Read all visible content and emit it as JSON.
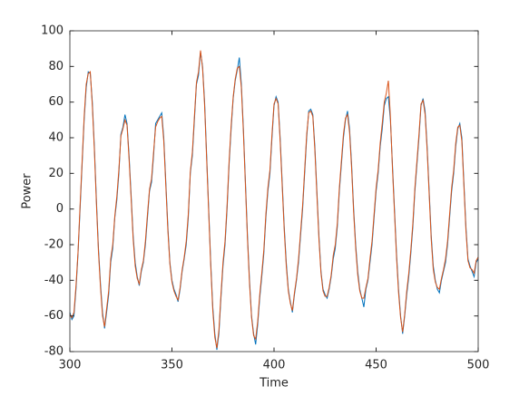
{
  "chart_data": {
    "type": "line",
    "xlabel": "Time",
    "ylabel": "Power",
    "xlim": [
      300,
      500
    ],
    "ylim": [
      -80,
      100
    ],
    "xticks": [
      300,
      350,
      400,
      450,
      500
    ],
    "yticks": [
      -80,
      -60,
      -40,
      -20,
      0,
      20,
      40,
      60,
      80,
      100
    ],
    "x": [
      300,
      301,
      302,
      303,
      304,
      305,
      306,
      307,
      308,
      309,
      310,
      311,
      312,
      313,
      314,
      315,
      316,
      317,
      318,
      319,
      320,
      321,
      322,
      323,
      324,
      325,
      326,
      327,
      328,
      329,
      330,
      331,
      332,
      333,
      334,
      335,
      336,
      337,
      338,
      339,
      340,
      341,
      342,
      343,
      344,
      345,
      346,
      347,
      348,
      349,
      350,
      351,
      352,
      353,
      354,
      355,
      356,
      357,
      358,
      359,
      360,
      361,
      362,
      363,
      364,
      365,
      366,
      367,
      368,
      369,
      370,
      371,
      372,
      373,
      374,
      375,
      376,
      377,
      378,
      379,
      380,
      381,
      382,
      383,
      384,
      385,
      386,
      387,
      388,
      389,
      390,
      391,
      392,
      393,
      394,
      395,
      396,
      397,
      398,
      399,
      400,
      401,
      402,
      403,
      404,
      405,
      406,
      407,
      408,
      409,
      410,
      411,
      412,
      413,
      414,
      415,
      416,
      417,
      418,
      419,
      420,
      421,
      422,
      423,
      424,
      425,
      426,
      427,
      428,
      429,
      430,
      431,
      432,
      433,
      434,
      435,
      436,
      437,
      438,
      439,
      440,
      441,
      442,
      443,
      444,
      445,
      446,
      447,
      448,
      449,
      450,
      451,
      452,
      453,
      454,
      455,
      456,
      457,
      458,
      459,
      460,
      461,
      462,
      463,
      464,
      465,
      466,
      467,
      468,
      469,
      470,
      471,
      472,
      473,
      474,
      475,
      476,
      477,
      478,
      479,
      480,
      481,
      482,
      483,
      484,
      485,
      486,
      487,
      488,
      489,
      490,
      491,
      492,
      493,
      494,
      495,
      496,
      497,
      498,
      499,
      500
    ],
    "series": [
      {
        "color": "#0072bd",
        "values": [
          -58,
          -62,
          -60,
          -45,
          -25,
          0,
          25,
          50,
          68,
          77,
          76,
          60,
          35,
          5,
          -22,
          -42,
          -58,
          -67,
          -58,
          -48,
          -30,
          -22,
          -5,
          5,
          20,
          42,
          46,
          53,
          48,
          30,
          8,
          -15,
          -30,
          -38,
          -43,
          -35,
          -30,
          -20,
          -5,
          10,
          15,
          30,
          48,
          50,
          52,
          54,
          40,
          15,
          -10,
          -30,
          -40,
          -45,
          -48,
          -52,
          -45,
          -35,
          -28,
          -20,
          -5,
          20,
          30,
          50,
          70,
          75,
          88,
          80,
          60,
          30,
          0,
          -30,
          -55,
          -70,
          -79,
          -70,
          -50,
          -32,
          -20,
          0,
          25,
          45,
          62,
          72,
          78,
          85,
          70,
          45,
          15,
          -15,
          -40,
          -60,
          -70,
          -76,
          -65,
          -50,
          -38,
          -25,
          -5,
          10,
          20,
          40,
          58,
          63,
          60,
          40,
          15,
          -10,
          -30,
          -45,
          -52,
          -58,
          -48,
          -40,
          -30,
          -15,
          0,
          20,
          40,
          55,
          56,
          53,
          35,
          10,
          -15,
          -35,
          -45,
          -48,
          -50,
          -45,
          -38,
          -28,
          -22,
          -10,
          10,
          25,
          40,
          50,
          55,
          45,
          25,
          0,
          -20,
          -35,
          -45,
          -50,
          -55,
          -45,
          -40,
          -30,
          -20,
          -5,
          10,
          20,
          35,
          45,
          58,
          62,
          63,
          50,
          25,
          0,
          -25,
          -45,
          -60,
          -70,
          -60,
          -48,
          -38,
          -25,
          -10,
          10,
          25,
          40,
          58,
          62,
          55,
          35,
          10,
          -15,
          -32,
          -40,
          -45,
          -47,
          -40,
          -35,
          -30,
          -20,
          -5,
          10,
          20,
          35,
          45,
          48,
          40,
          15,
          -10,
          -28,
          -32,
          -35,
          -38,
          -30,
          -28
        ]
      },
      {
        "color": "#d95319",
        "values": [
          -59,
          -61,
          -58,
          -43,
          -24,
          2,
          27,
          52,
          70,
          76,
          77,
          58,
          33,
          3,
          -24,
          -44,
          -60,
          -66,
          -56,
          -46,
          -28,
          -20,
          -4,
          7,
          22,
          41,
          45,
          50,
          47,
          28,
          6,
          -17,
          -32,
          -39,
          -42,
          -34,
          -29,
          -18,
          -3,
          11,
          17,
          32,
          46,
          49,
          51,
          52,
          38,
          13,
          -12,
          -31,
          -41,
          -46,
          -49,
          -51,
          -44,
          -34,
          -27,
          -18,
          -3,
          21,
          32,
          52,
          71,
          77,
          89,
          79,
          58,
          28,
          -2,
          -32,
          -57,
          -72,
          -78,
          -68,
          -48,
          -30,
          -18,
          2,
          27,
          47,
          63,
          73,
          79,
          80,
          68,
          43,
          13,
          -17,
          -42,
          -61,
          -71,
          -73,
          -63,
          -48,
          -36,
          -23,
          -3,
          12,
          22,
          42,
          59,
          62,
          59,
          38,
          13,
          -12,
          -32,
          -46,
          -53,
          -57,
          -47,
          -39,
          -28,
          -13,
          2,
          22,
          42,
          54,
          55,
          52,
          33,
          8,
          -17,
          -36,
          -46,
          -49,
          -49,
          -44,
          -37,
          -26,
          -20,
          -8,
          12,
          27,
          42,
          51,
          53,
          43,
          23,
          -2,
          -22,
          -37,
          -46,
          -50,
          -50,
          -44,
          -39,
          -28,
          -18,
          -3,
          12,
          22,
          37,
          48,
          60,
          65,
          72,
          52,
          23,
          -2,
          -27,
          -47,
          -61,
          -69,
          -59,
          -46,
          -36,
          -23,
          -8,
          12,
          27,
          42,
          59,
          61,
          53,
          33,
          8,
          -17,
          -34,
          -41,
          -44,
          -45,
          -39,
          -34,
          -28,
          -18,
          -3,
          12,
          22,
          37,
          46,
          47,
          38,
          13,
          -12,
          -29,
          -33,
          -34,
          -36,
          -29,
          -27
        ]
      }
    ]
  }
}
